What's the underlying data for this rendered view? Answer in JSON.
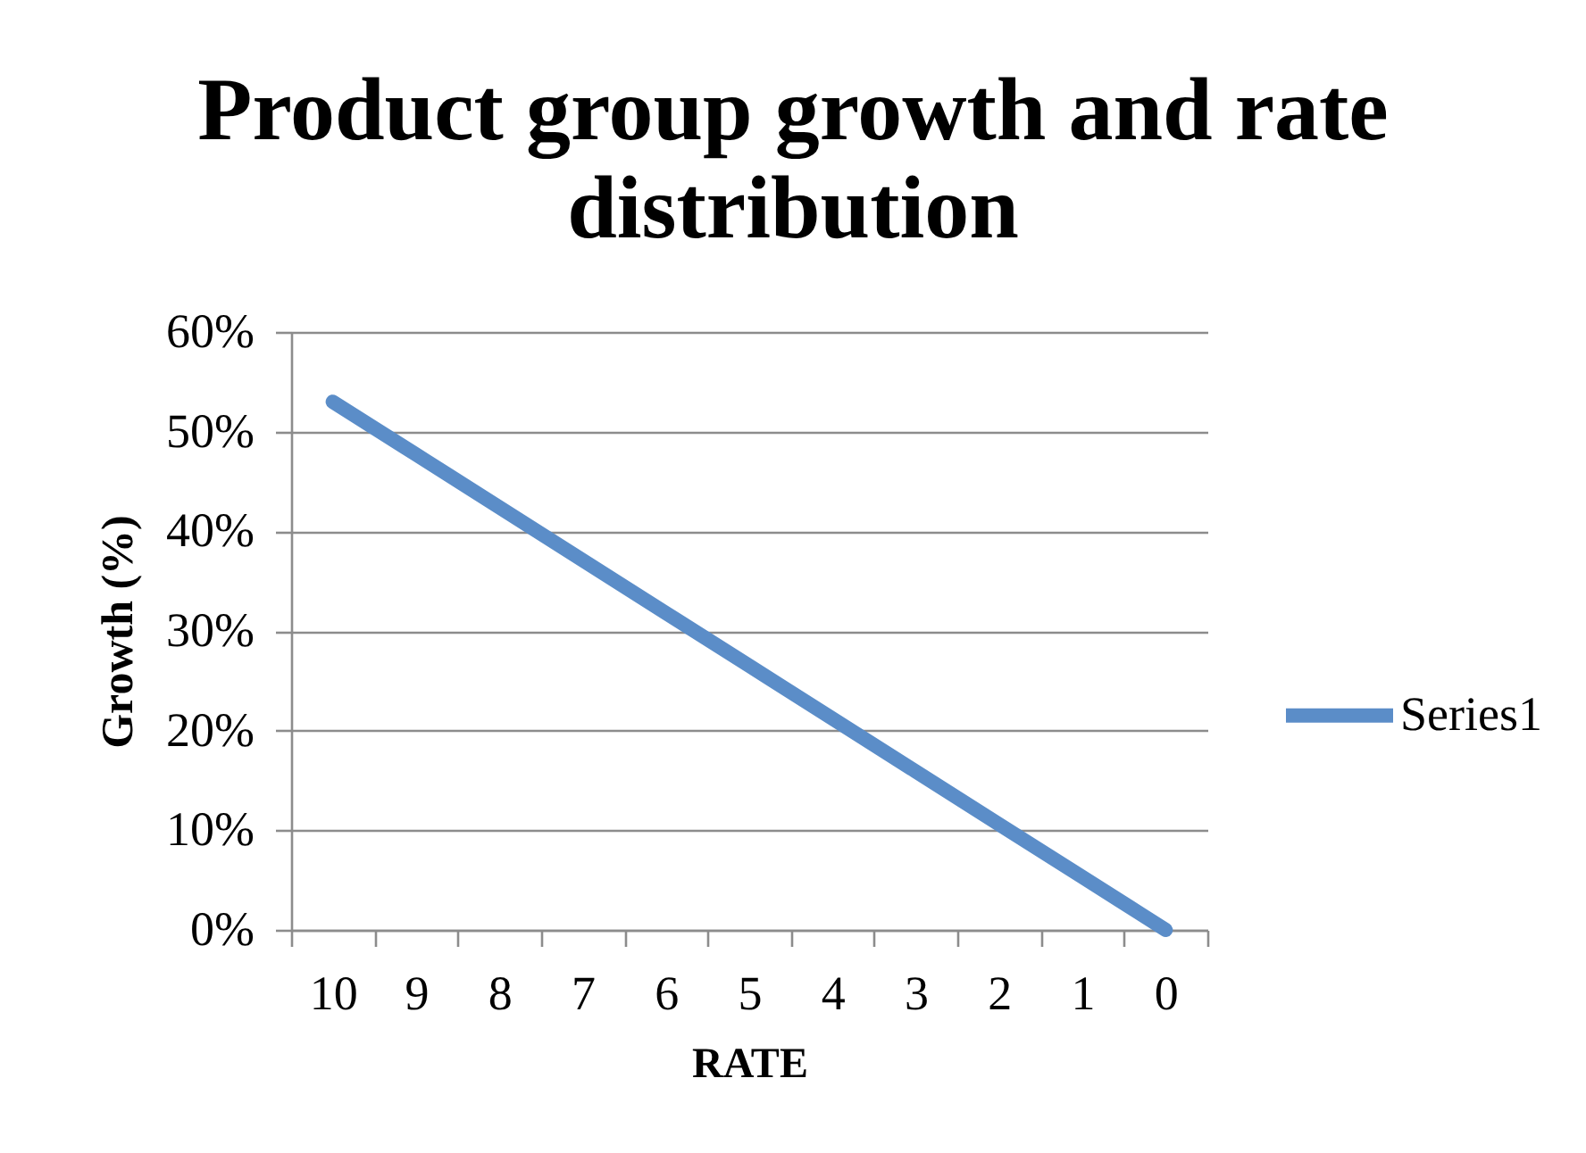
{
  "chart_data": {
    "type": "line",
    "title": "Product group growth and rate distribution",
    "xlabel": "RATE",
    "ylabel": "Growth (%)",
    "categories": [
      "10",
      "9",
      "8",
      "7",
      "6",
      "5",
      "4",
      "3",
      "2",
      "1",
      "0"
    ],
    "series": [
      {
        "name": "Series1",
        "color": "#5b8dc8",
        "values": [
          53,
          47.7,
          42.4,
          37.1,
          31.8,
          26.5,
          21.2,
          15.9,
          10.6,
          5.3,
          0
        ]
      }
    ],
    "ylim": [
      0,
      60
    ],
    "yticks": [
      {
        "value": 0,
        "label": "0%"
      },
      {
        "value": 10,
        "label": "10%"
      },
      {
        "value": 20,
        "label": "20%"
      },
      {
        "value": 30,
        "label": "30%"
      },
      {
        "value": 40,
        "label": "40%"
      },
      {
        "value": 50,
        "label": "50%"
      },
      {
        "value": 60,
        "label": "60%"
      }
    ],
    "grid": "y",
    "legend": "right",
    "marker": "none",
    "line_style": "solid"
  }
}
